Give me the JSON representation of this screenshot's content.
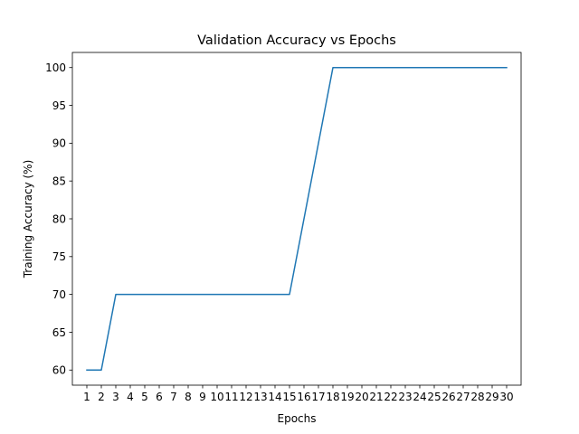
{
  "chart_data": {
    "type": "line",
    "title": "Validation Accuracy vs Epochs",
    "xlabel": "Epochs",
    "ylabel": "Training Accuracy (%)",
    "x": [
      1,
      2,
      3,
      4,
      5,
      6,
      7,
      8,
      9,
      10,
      11,
      12,
      13,
      14,
      15,
      16,
      17,
      18,
      19,
      20,
      21,
      22,
      23,
      24,
      25,
      26,
      27,
      28,
      29,
      30
    ],
    "x_tick_labels": [
      "1",
      "2",
      "3",
      "4",
      "5",
      "6",
      "7",
      "8",
      "9",
      "10",
      "11",
      "12",
      "13",
      "14",
      "15",
      "16",
      "17",
      "18",
      "19",
      "20",
      "21",
      "22",
      "23",
      "24",
      "25",
      "26",
      "27",
      "28",
      "29",
      "30"
    ],
    "y_ticks": [
      60,
      65,
      70,
      75,
      80,
      85,
      90,
      95,
      100
    ],
    "y_tick_labels": [
      "60",
      "65",
      "70",
      "75",
      "80",
      "85",
      "90",
      "95",
      "100"
    ],
    "series": [
      {
        "values": [
          60,
          60,
          70,
          70,
          70,
          70,
          70,
          70,
          70,
          70,
          70,
          70,
          70,
          70,
          70,
          80,
          90,
          100,
          100,
          100,
          100,
          100,
          100,
          100,
          100,
          100,
          100,
          100,
          100,
          100
        ],
        "color": "#1f77b4"
      }
    ],
    "xlim": [
      0,
      31
    ],
    "ylim": [
      58,
      102
    ],
    "grid": false,
    "legend": false
  }
}
